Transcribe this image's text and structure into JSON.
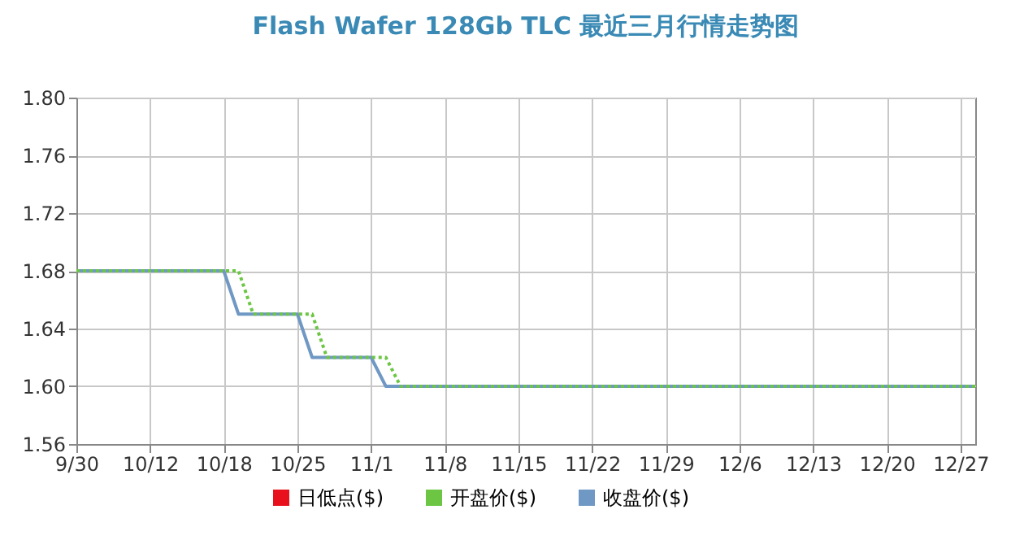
{
  "chart_data": {
    "type": "line",
    "title": "Flash Wafer 128Gb TLC 最近三月行情走势图",
    "categories": [
      "9/30",
      null,
      null,
      null,
      null,
      "10/12",
      null,
      null,
      null,
      null,
      "10/18",
      null,
      null,
      null,
      null,
      "10/25",
      null,
      null,
      null,
      null,
      "11/1",
      null,
      null,
      null,
      null,
      "11/8",
      null,
      null,
      null,
      null,
      "11/15",
      null,
      null,
      null,
      null,
      "11/22",
      null,
      null,
      null,
      null,
      "11/29",
      null,
      null,
      null,
      null,
      "12/6",
      null,
      null,
      null,
      null,
      "12/13",
      null,
      null,
      null,
      null,
      "12/20",
      null,
      null,
      null,
      null,
      "12/27",
      null
    ],
    "series": [
      {
        "name": "日低点($)",
        "color": "#e8101c",
        "line_style": "solid",
        "values": [
          null,
          null,
          null,
          null,
          null,
          null,
          null,
          null,
          null,
          null,
          null,
          null,
          null,
          null,
          null,
          null,
          null,
          null,
          null,
          null,
          null,
          null,
          null,
          null,
          null,
          null,
          null,
          null,
          null,
          null,
          null,
          null,
          null,
          null,
          null,
          null,
          null,
          null,
          null,
          null,
          null,
          null,
          null,
          null,
          null,
          null,
          null,
          null,
          null,
          null,
          null,
          null,
          null,
          null,
          null,
          null,
          null,
          null,
          null,
          null,
          null,
          null
        ]
      },
      {
        "name": "开盘价($)",
        "color": "#6cc644",
        "line_style": "dotted",
        "values": [
          1.68,
          1.68,
          1.68,
          1.68,
          1.68,
          1.68,
          1.68,
          1.68,
          1.68,
          1.68,
          1.68,
          1.68,
          1.65,
          1.65,
          1.65,
          1.65,
          1.65,
          1.62,
          1.62,
          1.62,
          1.62,
          1.62,
          1.6,
          1.6,
          1.6,
          1.6,
          1.6,
          1.6,
          1.6,
          1.6,
          1.6,
          1.6,
          1.6,
          1.6,
          1.6,
          1.6,
          1.6,
          1.6,
          1.6,
          1.6,
          1.6,
          1.6,
          1.6,
          1.6,
          1.6,
          1.6,
          1.6,
          1.6,
          1.6,
          1.6,
          1.6,
          1.6,
          1.6,
          1.6,
          1.6,
          1.6,
          1.6,
          1.6,
          1.6,
          1.6,
          1.6,
          1.6
        ]
      },
      {
        "name": "收盘价($)",
        "color": "#7098c4",
        "line_style": "solid",
        "values": [
          1.68,
          1.68,
          1.68,
          1.68,
          1.68,
          1.68,
          1.68,
          1.68,
          1.68,
          1.68,
          1.68,
          1.65,
          1.65,
          1.65,
          1.65,
          1.65,
          1.62,
          1.62,
          1.62,
          1.62,
          1.62,
          1.6,
          1.6,
          1.6,
          1.6,
          1.6,
          1.6,
          1.6,
          1.6,
          1.6,
          1.6,
          1.6,
          1.6,
          1.6,
          1.6,
          1.6,
          1.6,
          1.6,
          1.6,
          1.6,
          1.6,
          1.6,
          1.6,
          1.6,
          1.6,
          1.6,
          1.6,
          1.6,
          1.6,
          1.6,
          1.6,
          1.6,
          1.6,
          1.6,
          1.6,
          1.6,
          1.6,
          1.6,
          1.6,
          1.6,
          1.6,
          1.6
        ]
      }
    ],
    "ylim": [
      1.56,
      1.8
    ],
    "yticks": [
      1.56,
      {
        "value": 1.6,
        "label": "1.60"
      },
      1.64,
      1.68,
      1.72,
      1.76,
      {
        "value": 1.8,
        "label": "1.80"
      }
    ],
    "grid": true,
    "legend": "bottom"
  }
}
